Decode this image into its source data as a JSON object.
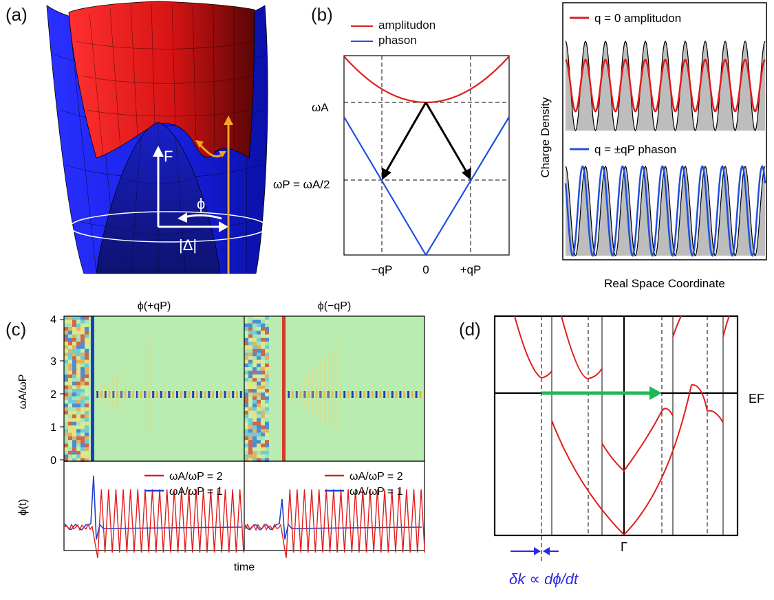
{
  "panels": {
    "a": {
      "letter": "(a)",
      "labels": {
        "F": "F",
        "phi": "ϕ",
        "delta": "|Δ|"
      },
      "colors": {
        "upper_surface": "#d81414",
        "lower_surface": "#1a22e8",
        "arrow": "#f5a623"
      }
    },
    "b": {
      "letter": "(b)",
      "legend": [
        {
          "name": "amplitudon",
          "color": "#e01c1c"
        },
        {
          "name": "phason",
          "color": "#1f4fe0"
        }
      ],
      "y_labels": {
        "omega_a": "ωA",
        "omega_p": "ωP = ωA/2"
      },
      "x_ticks": [
        "−qP",
        "0",
        "+qP"
      ],
      "chart_data": {
        "type": "line",
        "x_ticks": [
          "−qP",
          "0",
          "+qP"
        ],
        "series": [
          {
            "name": "amplitudon",
            "description": "ω = ωA + c·q², parabola with minimum ωA at q = 0"
          },
          {
            "name": "phason",
            "description": "ω ∝ |q|, reaches ωP = ωA/2 at q = ±qP"
          }
        ]
      },
      "right": {
        "ylabel": "Charge Density",
        "xlabel": "Real Space Coordinate",
        "legend_top": {
          "text": "q = 0 amplitudon",
          "color": "#e01c1c"
        },
        "legend_bottom": {
          "text": "q = ±qP phason",
          "color": "#1f4fe0"
        }
      }
    },
    "c": {
      "letter": "(c)",
      "titles": [
        "ϕ(+qP)",
        "ϕ(−qP)"
      ],
      "y_ticks": [
        "0",
        "1",
        "2",
        "3",
        "4"
      ],
      "ylabel_top": "ωA/ωP",
      "ylabel_bottom": "ϕ(t)",
      "xlabel": "time",
      "legend": [
        {
          "name": "ωA/ωP = 2",
          "color": "#e01c1c"
        },
        {
          "name": "ωA/ωP = 1",
          "color": "#1f3fcf"
        }
      ]
    },
    "d": {
      "letter": "(d)",
      "ef_label": "EF",
      "gamma_label": "Γ",
      "formula": "δk ∝ dϕ/dt",
      "colors": {
        "band": "#e01c1c",
        "arrow": "#1db954",
        "formula": "#2a2ae0"
      }
    }
  }
}
